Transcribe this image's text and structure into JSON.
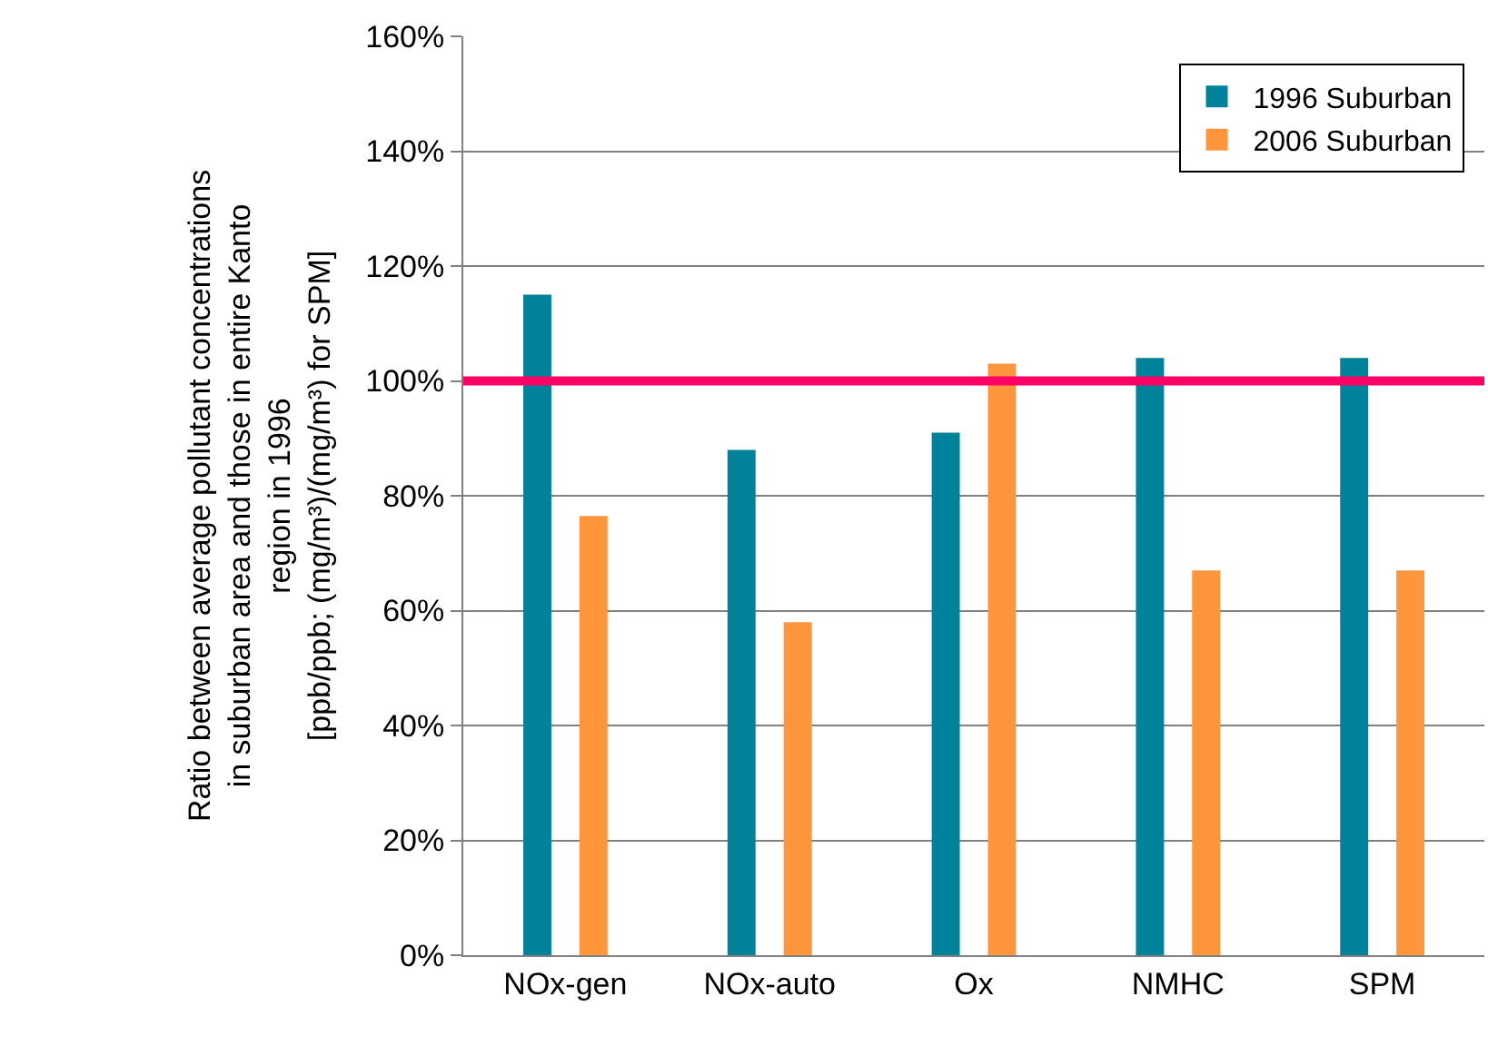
{
  "chart_data": {
    "type": "bar",
    "ylabel": "Ratio between average pollutant concentrations\nin suburban area and those in entire Kanto\nregion in 1996\n[ppb/ppb; (mg/m³)/(mg/m³) for SPM]",
    "categories": [
      "NOx-gen",
      "NOx-auto",
      "Ox",
      "NMHC",
      "SPM"
    ],
    "series": [
      {
        "name": "1996 Suburban",
        "color": "#00829b",
        "values": [
          115,
          88,
          91,
          104,
          104
        ]
      },
      {
        "name": "2006 Suburban",
        "color": "#ff963c",
        "values": [
          76.5,
          58,
          103,
          67,
          67
        ]
      }
    ],
    "ylim": [
      0,
      160
    ],
    "yticks": [
      {
        "value": 0,
        "label": "0%"
      },
      {
        "value": 20,
        "label": "20%"
      },
      {
        "value": 40,
        "label": "40%"
      },
      {
        "value": 60,
        "label": "60%"
      },
      {
        "value": 80,
        "label": "80%"
      },
      {
        "value": 100,
        "label": "100%"
      },
      {
        "value": 120,
        "label": "120%"
      },
      {
        "value": 140,
        "label": "140%"
      },
      {
        "value": 160,
        "label": "160%"
      }
    ],
    "ref_lines": [
      {
        "axis": "y",
        "value": 100,
        "color": "#ff0066"
      }
    ],
    "grid": "y",
    "legend": "top right"
  }
}
